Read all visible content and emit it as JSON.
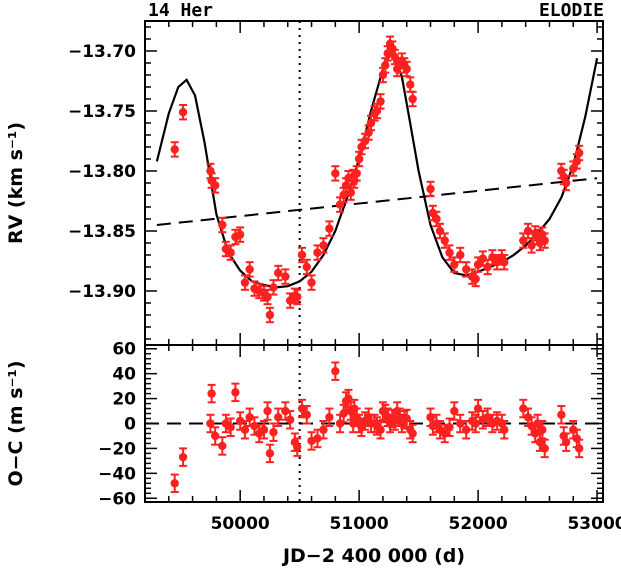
{
  "header": {
    "left": "14 Her",
    "right": "ELODIE"
  },
  "colors": {
    "data": "#ff2020",
    "axes": "#000000",
    "background": "#ffffff"
  },
  "chart_data": [
    {
      "type": "scatter",
      "panel": "top",
      "ylabel": "RV (km s⁻¹)",
      "xlim": [
        49200,
        53050
      ],
      "ylim": [
        -13.945,
        -13.675
      ],
      "y_inverted": true,
      "x_ticks": [
        50000,
        51000,
        52000,
        53000
      ],
      "y_ticks": [
        -13.7,
        -13.75,
        -13.8,
        -13.85,
        -13.9
      ],
      "y_tick_labels": [
        "−13.70",
        "−13.75",
        "−13.80",
        "−13.85",
        "−13.90"
      ],
      "vertical_marker_x": 50500,
      "trend_line": {
        "x": [
          49300,
          53000
        ],
        "y": [
          -13.845,
          -13.806
        ]
      },
      "model_curve": {
        "x": [
          49300,
          49400,
          49480,
          49550,
          49620,
          49700,
          49800,
          49900,
          50000,
          50100,
          50200,
          50300,
          50400,
          50500,
          50600,
          50700,
          50800,
          50900,
          51000,
          51100,
          51200,
          51260,
          51300,
          51360,
          51420,
          51500,
          51600,
          51700,
          51800,
          51900,
          52000,
          52100,
          52200,
          52300,
          52400,
          52500,
          52600,
          52700,
          52800,
          52900,
          53000
        ],
        "y": [
          -13.792,
          -13.752,
          -13.73,
          -13.724,
          -13.737,
          -13.776,
          -13.836,
          -13.868,
          -13.883,
          -13.892,
          -13.895,
          -13.897,
          -13.896,
          -13.892,
          -13.884,
          -13.87,
          -13.85,
          -13.822,
          -13.79,
          -13.75,
          -13.715,
          -13.703,
          -13.705,
          -13.722,
          -13.755,
          -13.8,
          -13.845,
          -13.872,
          -13.885,
          -13.887,
          -13.884,
          -13.88,
          -13.876,
          -13.87,
          -13.862,
          -13.852,
          -13.84,
          -13.822,
          -13.795,
          -13.755,
          -13.706
        ]
      },
      "series": [
        {
          "marker": "filled-circle-with-errorbar",
          "x": [
            49450,
            49520,
            49750,
            49760,
            49790,
            49850,
            49880,
            49920,
            49960,
            50000,
            50040,
            50080,
            50120,
            50160,
            50200,
            50230,
            50250,
            50280,
            50320,
            50380,
            50420,
            50460,
            50480,
            50520,
            50560,
            50600,
            50650,
            50700,
            50750,
            50800,
            50840,
            50870,
            50890,
            50910,
            50930,
            50950,
            50960,
            50980,
            51000,
            51020,
            51050,
            51080,
            51100,
            51130,
            51150,
            51180,
            51200,
            51220,
            51240,
            51260,
            51280,
            51300,
            51320,
            51340,
            51360,
            51380,
            51400,
            51430,
            51450,
            51600,
            51620,
            51650,
            51680,
            51720,
            51760,
            51800,
            51850,
            51900,
            51950,
            51980,
            52000,
            52040,
            52080,
            52120,
            52160,
            52200,
            52220,
            52380,
            52420,
            52450,
            52480,
            52500,
            52520,
            52540,
            52560,
            52700,
            52720,
            52740,
            52800,
            52830,
            52850
          ],
          "y": [
            -13.782,
            -13.751,
            -13.8,
            -13.808,
            -13.812,
            -13.845,
            -13.865,
            -13.868,
            -13.855,
            -13.853,
            -13.893,
            -13.882,
            -13.898,
            -13.9,
            -13.902,
            -13.905,
            -13.92,
            -13.897,
            -13.885,
            -13.888,
            -13.908,
            -13.904,
            -13.905,
            -13.87,
            -13.88,
            -13.893,
            -13.868,
            -13.862,
            -13.848,
            -13.802,
            -13.828,
            -13.82,
            -13.812,
            -13.806,
            -13.818,
            -13.805,
            -13.808,
            -13.802,
            -13.79,
            -13.78,
            -13.775,
            -13.768,
            -13.76,
            -13.752,
            -13.75,
            -13.742,
            -13.72,
            -13.712,
            -13.702,
            -13.694,
            -13.698,
            -13.705,
            -13.715,
            -13.712,
            -13.708,
            -13.712,
            -13.715,
            -13.728,
            -13.74,
            -13.815,
            -13.835,
            -13.84,
            -13.85,
            -13.858,
            -13.868,
            -13.878,
            -13.87,
            -13.882,
            -13.888,
            -13.89,
            -13.878,
            -13.873,
            -13.88,
            -13.872,
            -13.876,
            -13.872,
            -13.876,
            -13.858,
            -13.85,
            -13.862,
            -13.852,
            -13.855,
            -13.86,
            -13.853,
            -13.858,
            -13.8,
            -13.805,
            -13.81,
            -13.798,
            -13.792,
            -13.785
          ],
          "err": 0.006
        }
      ]
    },
    {
      "type": "scatter",
      "panel": "bottom",
      "xlabel": "JD−2 400 000 (d)",
      "ylabel": "O−C (m s⁻¹)",
      "xlim": [
        49200,
        53050
      ],
      "ylim": [
        -63,
        63
      ],
      "x_ticks": [
        50000,
        51000,
        52000,
        53000
      ],
      "x_tick_labels": [
        "50000",
        "51000",
        "52000",
        "53000"
      ],
      "y_ticks": [
        60,
        40,
        20,
        0,
        -20,
        -40,
        -60
      ],
      "y_tick_labels": [
        "60",
        "40",
        "20",
        "0",
        "−20",
        "−40",
        "−60"
      ],
      "vertical_marker_x": 50500,
      "zero_line": 0,
      "series": [
        {
          "marker": "filled-circle-with-errorbar",
          "x": [
            49450,
            49520,
            49750,
            49760,
            49790,
            49850,
            49880,
            49920,
            49960,
            50000,
            50040,
            50080,
            50120,
            50160,
            50200,
            50230,
            50250,
            50280,
            50320,
            50380,
            50420,
            50460,
            50480,
            50520,
            50560,
            50600,
            50650,
            50700,
            50750,
            50800,
            50840,
            50870,
            50890,
            50910,
            50930,
            50950,
            50960,
            50980,
            51000,
            51020,
            51050,
            51080,
            51100,
            51130,
            51150,
            51180,
            51200,
            51220,
            51240,
            51260,
            51280,
            51300,
            51320,
            51340,
            51360,
            51380,
            51400,
            51430,
            51450,
            51600,
            51620,
            51650,
            51680,
            51720,
            51760,
            51800,
            51850,
            51900,
            51950,
            51980,
            52000,
            52040,
            52080,
            52120,
            52160,
            52200,
            52220,
            52380,
            52420,
            52450,
            52480,
            52500,
            52520,
            52540,
            52560,
            52700,
            52720,
            52740,
            52800,
            52830,
            52850
          ],
          "y": [
            -48,
            -27,
            0,
            24,
            -10,
            -18,
            0,
            -3,
            25,
            2,
            -5,
            5,
            -2,
            -8,
            -5,
            10,
            -24,
            -7,
            5,
            10,
            3,
            -15,
            -19,
            12,
            7,
            -14,
            -12,
            -5,
            5,
            42,
            0,
            8,
            18,
            20,
            10,
            0,
            12,
            5,
            0,
            -3,
            2,
            5,
            0,
            0,
            -2,
            -5,
            10,
            8,
            5,
            0,
            4,
            2,
            10,
            5,
            0,
            3,
            4,
            -5,
            -8,
            5,
            -2,
            0,
            -5,
            -8,
            -3,
            10,
            0,
            -5,
            2,
            0,
            12,
            3,
            5,
            0,
            2,
            0,
            -5,
            12,
            5,
            -2,
            -8,
            0,
            -15,
            -5,
            -20,
            7,
            -10,
            -15,
            -5,
            -12,
            -20
          ],
          "err": 7
        }
      ]
    }
  ]
}
